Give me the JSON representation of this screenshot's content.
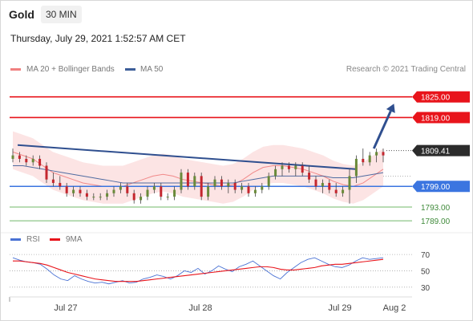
{
  "header": {
    "symbol": "Gold",
    "interval": "30 MIN",
    "datetime": "Thursday, July 29, 2021 1:52:57 AM CET"
  },
  "legend": {
    "ma20_label": "MA 20 + Bollinger Bands",
    "ma50_label": "MA 50",
    "rsi_label": "RSI",
    "ma9_label": "9MA",
    "copyright": "Research © 2021 Trading Central"
  },
  "colors": {
    "resistance": "#e8141b",
    "support": "#3b75e0",
    "target_support": "#71b86a",
    "trendline": "#2f4f8f",
    "ma20": "#f08080",
    "ma50": "#3d5e99",
    "bollinger": "#fbd9d9",
    "candle_up": "#6a8a3a",
    "candle_down": "#c4262e",
    "rsi": "#4a72d4",
    "rsi_ma": "#e8141b",
    "last_price": "#2b2b2b"
  },
  "chart_data": [
    {
      "type": "candlestick",
      "title": "Gold",
      "interval": "30 MIN",
      "x_ticks": [
        "Jul 27",
        "Jul 28",
        "Jul 29",
        "Aug 2"
      ],
      "ylim": [
        1786,
        1831
      ],
      "last_price": 1809.41,
      "levels": [
        {
          "value": 1825.0,
          "label": "1825.00",
          "kind": "resistance"
        },
        {
          "value": 1819.0,
          "label": "1819.00",
          "kind": "resistance"
        },
        {
          "value": 1799.0,
          "label": "1799.00",
          "kind": "support"
        },
        {
          "value": 1793.0,
          "label": "1793.00",
          "kind": "target"
        },
        {
          "value": 1789.0,
          "label": "1789.00",
          "kind": "target"
        }
      ],
      "trendline": {
        "start": [
          0.02,
          1811.0
        ],
        "end": [
          0.86,
          1804.0
        ]
      },
      "projection_arrow": {
        "from": [
          0.905,
          1810.0
        ],
        "to": [
          0.955,
          1823.0
        ]
      },
      "series": [
        {
          "name": "MA 20 + Bollinger Bands",
          "values": [
            1809,
            1808,
            1807,
            1805,
            1803,
            1802,
            1801,
            1800,
            1799.5,
            1799,
            1799,
            1799,
            1800,
            1801,
            1802,
            1802.5,
            1802,
            1801,
            1800.5,
            1800,
            1799.5,
            1799,
            1799.5,
            1801,
            1803,
            1804.5,
            1805,
            1805,
            1804.5,
            1804,
            1803,
            1802,
            1800.5,
            1799.5,
            1799,
            1800,
            1802,
            1804
          ]
        },
        {
          "name": "MA 50",
          "values": [
            1805,
            1805,
            1804.5,
            1804,
            1803.5,
            1803,
            1802.5,
            1802,
            1801.5,
            1801,
            1800.5,
            1800,
            1800,
            1800,
            1800,
            1800,
            1800,
            1800,
            1800,
            1800,
            1800,
            1800,
            1800,
            1800.5,
            1801,
            1801.5,
            1802,
            1802,
            1802,
            1802,
            1802,
            1802,
            1801.5,
            1801.5,
            1801.5,
            1802,
            1802.5,
            1803
          ]
        }
      ],
      "candles": [
        [
          1807,
          1810,
          1806,
          1808
        ],
        [
          1808,
          1809,
          1806,
          1807
        ],
        [
          1807,
          1808,
          1805,
          1806
        ],
        [
          1806,
          1808,
          1805,
          1807
        ],
        [
          1807,
          1808,
          1804,
          1805
        ],
        [
          1805,
          1806,
          1800,
          1801
        ],
        [
          1801,
          1803,
          1799,
          1800
        ],
        [
          1800,
          1802,
          1798,
          1799
        ],
        [
          1799,
          1800,
          1796,
          1797
        ],
        [
          1797,
          1799,
          1796,
          1798
        ],
        [
          1798,
          1799,
          1796,
          1797
        ],
        [
          1797,
          1798,
          1795,
          1796
        ],
        [
          1796,
          1797,
          1795,
          1796
        ],
        [
          1796,
          1797,
          1795,
          1796
        ],
        [
          1796,
          1798,
          1795,
          1797
        ],
        [
          1797,
          1799,
          1796,
          1798
        ],
        [
          1798,
          1800,
          1797,
          1799
        ],
        [
          1799,
          1800,
          1796,
          1797
        ],
        [
          1797,
          1798,
          1794,
          1795
        ],
        [
          1795,
          1797,
          1794,
          1796
        ],
        [
          1796,
          1799,
          1795,
          1798
        ],
        [
          1798,
          1800,
          1797,
          1799
        ],
        [
          1799,
          1800,
          1795,
          1796
        ],
        [
          1796,
          1797,
          1795,
          1796
        ],
        [
          1796,
          1799,
          1795,
          1798
        ],
        [
          1798,
          1804,
          1797,
          1803
        ],
        [
          1803,
          1804,
          1798,
          1799
        ],
        [
          1799,
          1803,
          1798,
          1802
        ],
        [
          1802,
          1803,
          1795,
          1796
        ],
        [
          1796,
          1800,
          1795,
          1799
        ],
        [
          1799,
          1802,
          1798,
          1801
        ],
        [
          1801,
          1802,
          1798,
          1799
        ],
        [
          1799,
          1801,
          1797,
          1800
        ],
        [
          1800,
          1801,
          1797,
          1798
        ],
        [
          1798,
          1800,
          1797,
          1799
        ],
        [
          1799,
          1800,
          1796,
          1797
        ],
        [
          1797,
          1799,
          1796,
          1798
        ],
        [
          1798,
          1800,
          1797,
          1799
        ],
        [
          1799,
          1803,
          1798,
          1802
        ],
        [
          1802,
          1805,
          1801,
          1804
        ],
        [
          1804,
          1806,
          1802,
          1805
        ],
        [
          1805,
          1806,
          1803,
          1804
        ],
        [
          1804,
          1806,
          1802,
          1805
        ],
        [
          1805,
          1806,
          1802,
          1803
        ],
        [
          1803,
          1805,
          1800,
          1801
        ],
        [
          1801,
          1802,
          1798,
          1799
        ],
        [
          1799,
          1801,
          1797,
          1800
        ],
        [
          1800,
          1801,
          1797,
          1798
        ],
        [
          1798,
          1800,
          1796,
          1797
        ],
        [
          1797,
          1799,
          1796,
          1798
        ],
        [
          1798,
          1804,
          1794,
          1802
        ],
        [
          1802,
          1808,
          1800,
          1807
        ],
        [
          1807,
          1810,
          1805,
          1806
        ],
        [
          1806,
          1809,
          1805,
          1808
        ],
        [
          1808,
          1810,
          1806,
          1809
        ],
        [
          1809,
          1810,
          1806,
          1808
        ]
      ]
    },
    {
      "type": "line",
      "title": "RSI",
      "ylim": [
        20,
        75
      ],
      "y_ticks": [
        70,
        50,
        30
      ],
      "series": [
        {
          "name": "RSI",
          "values": [
            66,
            63,
            61,
            60,
            58,
            52,
            45,
            40,
            38,
            44,
            40,
            37,
            35,
            36,
            34,
            36,
            38,
            35,
            36,
            40,
            42,
            45,
            43,
            40,
            44,
            50,
            48,
            53,
            46,
            50,
            56,
            52,
            49,
            55,
            58,
            62,
            56,
            50,
            44,
            40,
            48,
            54,
            60,
            64,
            66,
            62,
            58,
            55,
            54,
            57,
            62,
            66,
            64,
            65,
            66
          ]
        },
        {
          "name": "9MA",
          "values": [
            62,
            62,
            61,
            60,
            59,
            57,
            54,
            51,
            48,
            46,
            44,
            42,
            40,
            39,
            38,
            37,
            37,
            37,
            37,
            38,
            39,
            40,
            41,
            42,
            43,
            44,
            45,
            46,
            47,
            48,
            49,
            50,
            51,
            52,
            53,
            54,
            55,
            55,
            54,
            52,
            51,
            51,
            52,
            53,
            54,
            56,
            57,
            58,
            58,
            59,
            60,
            61,
            62,
            63,
            64
          ]
        }
      ]
    }
  ]
}
